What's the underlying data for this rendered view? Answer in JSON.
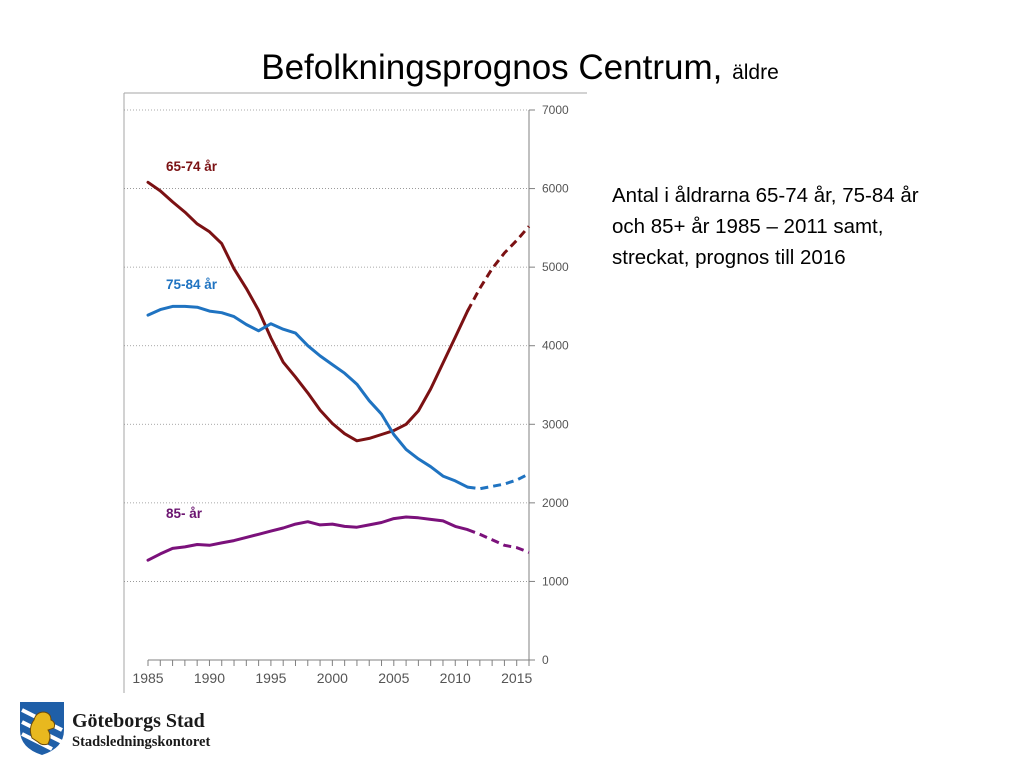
{
  "slide": {
    "title_main": "Befolkningsprognos Centrum,",
    "title_sub": "äldre",
    "caption": "Antal i åldrarna 65-74 år, 75-84 år och 85+ år 1985 – 2011 samt, streckat, prognos till 2016"
  },
  "logo": {
    "name": "Göteborgs Stad",
    "department": "Stadsledningskontoret",
    "colors": {
      "shield": "#1f5fa8",
      "lion": "#e8b81f",
      "stripes": "#ffffff"
    }
  },
  "chart_data": {
    "type": "line",
    "title": "",
    "xlabel": "",
    "ylabel": "",
    "x_range": [
      1985,
      2016
    ],
    "xticks": [
      1985,
      1990,
      1995,
      2000,
      2005,
      2010,
      2015
    ],
    "ylim": [
      0,
      7000
    ],
    "yticks": [
      0,
      1000,
      2000,
      3000,
      4000,
      5000,
      6000,
      7000
    ],
    "y_axis_side": "right",
    "grid": "horizontal dotted",
    "forecast_style": "dashed",
    "series": [
      {
        "name": "65-74 år",
        "color": "#7b1113",
        "label_color": "#7b1113",
        "years": [
          1985,
          1986,
          1987,
          1988,
          1989,
          1990,
          1991,
          1992,
          1993,
          1994,
          1995,
          1996,
          1997,
          1998,
          1999,
          2000,
          2001,
          2002,
          2003,
          2004,
          2005,
          2006,
          2007,
          2008,
          2009,
          2010,
          2011
        ],
        "values": [
          6080,
          5970,
          5830,
          5700,
          5550,
          5450,
          5300,
          4980,
          4730,
          4450,
          4100,
          3790,
          3600,
          3400,
          3180,
          3010,
          2880,
          2790,
          2820,
          2870,
          2920,
          3000,
          3170,
          3450,
          3780,
          4110,
          4440
        ],
        "forecast_years": [
          2011,
          2012,
          2013,
          2014,
          2015,
          2016
        ],
        "forecast_values": [
          4440,
          4730,
          4980,
          5180,
          5340,
          5520
        ]
      },
      {
        "name": "75-84 år",
        "color": "#1f73c1",
        "label_color": "#1f73c1",
        "years": [
          1985,
          1986,
          1987,
          1988,
          1989,
          1990,
          1991,
          1992,
          1993,
          1994,
          1995,
          1996,
          1997,
          1998,
          1999,
          2000,
          2001,
          2002,
          2003,
          2004,
          2005,
          2006,
          2007,
          2008,
          2009,
          2010,
          2011
        ],
        "values": [
          4390,
          4460,
          4500,
          4500,
          4490,
          4440,
          4420,
          4370,
          4270,
          4190,
          4280,
          4210,
          4160,
          4000,
          3870,
          3760,
          3650,
          3510,
          3300,
          3130,
          2870,
          2680,
          2560,
          2460,
          2340,
          2280,
          2200
        ],
        "forecast_years": [
          2011,
          2012,
          2013,
          2014,
          2015,
          2016
        ],
        "forecast_values": [
          2200,
          2180,
          2210,
          2240,
          2290,
          2370
        ]
      },
      {
        "name": "85- år",
        "color": "#7b117b",
        "label_color": "#6b1470",
        "years": [
          1985,
          1986,
          1987,
          1988,
          1989,
          1990,
          1991,
          1992,
          1993,
          1994,
          1995,
          1996,
          1997,
          1998,
          1999,
          2000,
          2001,
          2002,
          2003,
          2004,
          2005,
          2006,
          2007,
          2008,
          2009,
          2010,
          2011
        ],
        "values": [
          1270,
          1350,
          1420,
          1440,
          1470,
          1460,
          1490,
          1520,
          1560,
          1600,
          1640,
          1680,
          1730,
          1760,
          1720,
          1730,
          1700,
          1690,
          1720,
          1750,
          1800,
          1820,
          1810,
          1790,
          1770,
          1700,
          1660
        ],
        "forecast_years": [
          2011,
          2012,
          2013,
          2014,
          2015,
          2016
        ],
        "forecast_values": [
          1660,
          1600,
          1530,
          1460,
          1430,
          1370
        ]
      }
    ]
  }
}
